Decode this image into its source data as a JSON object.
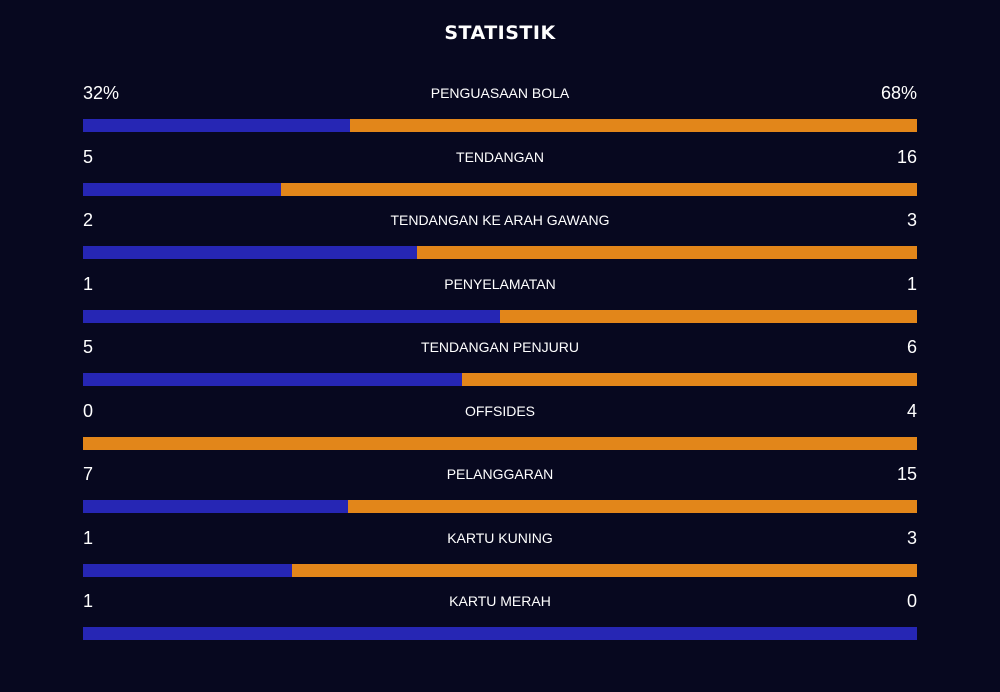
{
  "title": "STATISTIK",
  "colors": {
    "home": "#2626b4",
    "away": "#e2861a",
    "background": "#07081f"
  },
  "stats": [
    {
      "label": "PENGUASAAN BOLA",
      "home": "32%",
      "away": "68%",
      "home_share": 0.32
    },
    {
      "label": "TENDANGAN",
      "home": "5",
      "away": "16",
      "home_share": 0.238
    },
    {
      "label": "TENDANGAN KE ARAH GAWANG",
      "home": "2",
      "away": "3",
      "home_share": 0.4
    },
    {
      "label": "PENYELAMATAN",
      "home": "1",
      "away": "1",
      "home_share": 0.5
    },
    {
      "label": "TENDANGAN PENJURU",
      "home": "5",
      "away": "6",
      "home_share": 0.455
    },
    {
      "label": "OFFSIDES",
      "home": "0",
      "away": "4",
      "home_share": 0.0
    },
    {
      "label": "PELANGGARAN",
      "home": "7",
      "away": "15",
      "home_share": 0.318
    },
    {
      "label": "KARTU KUNING",
      "home": "1",
      "away": "3",
      "home_share": 0.25
    },
    {
      "label": "KARTU MERAH",
      "home": "1",
      "away": "0",
      "home_share": 1.0
    }
  ]
}
